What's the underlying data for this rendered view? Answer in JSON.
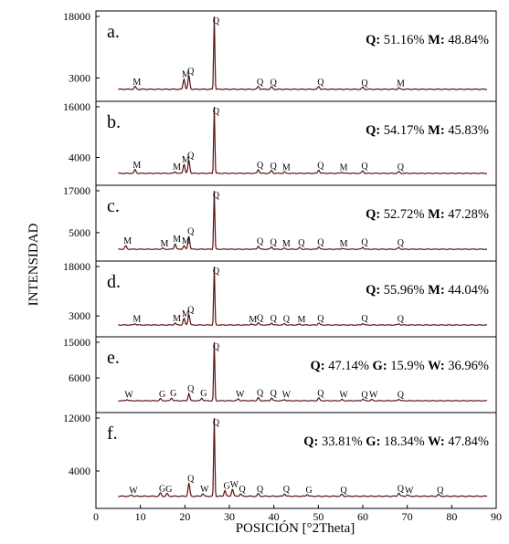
{
  "chart_data": {
    "type": "line",
    "xlabel": "POSICIÓN [°2Theta]",
    "ylabel": "INTENSIDAD",
    "xlim": [
      0,
      90
    ],
    "x_ticks": [
      0,
      10,
      20,
      30,
      40,
      50,
      60,
      70,
      80,
      90
    ],
    "grid": false,
    "line_color": "#5a1010",
    "panels": [
      {
        "letter": "a.",
        "ymax": 18000,
        "y_ticks": [
          3000,
          18000
        ],
        "composition": [
          {
            "label": "Q:",
            "value": "51.16%"
          },
          {
            "label": "M:",
            "value": "48.84%"
          }
        ],
        "peaks": [
          {
            "phase": "M",
            "x": 8.8,
            "y": 700
          },
          {
            "phase": "M",
            "x": 19.8,
            "y": 2600
          },
          {
            "phase": "Q",
            "x": 20.9,
            "y": 3300
          },
          {
            "phase": "Q",
            "x": 26.6,
            "y": 18000
          },
          {
            "phase": "Q",
            "x": 36.5,
            "y": 700
          },
          {
            "phase": "Q",
            "x": 39.5,
            "y": 600
          },
          {
            "phase": "Q",
            "x": 50.1,
            "y": 700
          },
          {
            "phase": "Q",
            "x": 60.0,
            "y": 500
          },
          {
            "phase": "M",
            "x": 68.1,
            "y": 300
          }
        ]
      },
      {
        "letter": "b.",
        "ymax": 16000,
        "y_ticks": [
          4000,
          16000
        ],
        "composition": [
          {
            "label": "Q:",
            "value": "54.17%"
          },
          {
            "label": "M:",
            "value": "45.83%"
          }
        ],
        "peaks": [
          {
            "phase": "M",
            "x": 8.8,
            "y": 900
          },
          {
            "phase": "M",
            "x": 17.8,
            "y": 400
          },
          {
            "phase": "M",
            "x": 19.8,
            "y": 2200
          },
          {
            "phase": "Q",
            "x": 20.9,
            "y": 3100
          },
          {
            "phase": "Q",
            "x": 26.6,
            "y": 16000
          },
          {
            "phase": "Q",
            "x": 36.5,
            "y": 900
          },
          {
            "phase": "Q",
            "x": 39.5,
            "y": 700
          },
          {
            "phase": "M",
            "x": 42.4,
            "y": 300
          },
          {
            "phase": "Q",
            "x": 50.1,
            "y": 800
          },
          {
            "phase": "M",
            "x": 55.3,
            "y": 300
          },
          {
            "phase": "Q",
            "x": 60.0,
            "y": 600
          },
          {
            "phase": "Q",
            "x": 68.1,
            "y": 400
          }
        ]
      },
      {
        "letter": "c.",
        "ymax": 17000,
        "y_ticks": [
          5000,
          17000
        ],
        "composition": [
          {
            "label": "Q:",
            "value": "52.72%"
          },
          {
            "label": "M:",
            "value": "47.28%"
          }
        ],
        "peaks": [
          {
            "phase": "M",
            "x": 6.7,
            "y": 1000
          },
          {
            "phase": "M",
            "x": 15.0,
            "y": 300
          },
          {
            "phase": "M",
            "x": 17.8,
            "y": 1600
          },
          {
            "phase": "M",
            "x": 19.8,
            "y": 1000
          },
          {
            "phase": "Q",
            "x": 20.9,
            "y": 3800
          },
          {
            "phase": "Q",
            "x": 26.6,
            "y": 17000
          },
          {
            "phase": "Q",
            "x": 36.5,
            "y": 900
          },
          {
            "phase": "Q",
            "x": 39.5,
            "y": 700
          },
          {
            "phase": "M",
            "x": 42.4,
            "y": 300
          },
          {
            "phase": "Q",
            "x": 45.8,
            "y": 500
          },
          {
            "phase": "Q",
            "x": 50.1,
            "y": 700
          },
          {
            "phase": "M",
            "x": 55.3,
            "y": 300
          },
          {
            "phase": "Q",
            "x": 60.0,
            "y": 600
          },
          {
            "phase": "Q",
            "x": 68.1,
            "y": 500
          }
        ]
      },
      {
        "letter": "d.",
        "ymax": 18000,
        "y_ticks": [
          3000,
          18000
        ],
        "composition": [
          {
            "label": "Q:",
            "value": "55.96%"
          },
          {
            "label": "M:",
            "value": "44.04%"
          }
        ],
        "peaks": [
          {
            "phase": "M",
            "x": 8.8,
            "y": 400
          },
          {
            "phase": "M",
            "x": 17.8,
            "y": 600
          },
          {
            "phase": "M",
            "x": 19.8,
            "y": 2000
          },
          {
            "phase": "Q",
            "x": 20.9,
            "y": 3200
          },
          {
            "phase": "Q",
            "x": 26.6,
            "y": 18000
          },
          {
            "phase": "M",
            "x": 34.9,
            "y": 300
          },
          {
            "phase": "Q",
            "x": 36.5,
            "y": 700
          },
          {
            "phase": "Q",
            "x": 39.5,
            "y": 600
          },
          {
            "phase": "Q",
            "x": 42.4,
            "y": 400
          },
          {
            "phase": "M",
            "x": 45.8,
            "y": 300
          },
          {
            "phase": "Q",
            "x": 50.1,
            "y": 600
          },
          {
            "phase": "Q",
            "x": 60.0,
            "y": 500
          },
          {
            "phase": "Q",
            "x": 68.1,
            "y": 400
          }
        ]
      },
      {
        "letter": "e.",
        "ymax": 15000,
        "y_ticks": [
          6000,
          15000
        ],
        "composition": [
          {
            "label": "Q:",
            "value": "47.14%"
          },
          {
            "label": "G:",
            "value": "15.9%"
          },
          {
            "label": "W:",
            "value": "36.96%"
          }
        ],
        "peaks": [
          {
            "phase": "W",
            "x": 7.0,
            "y": 300
          },
          {
            "phase": "G",
            "x": 14.5,
            "y": 500
          },
          {
            "phase": "G",
            "x": 17.0,
            "y": 700
          },
          {
            "phase": "Q",
            "x": 20.9,
            "y": 1800
          },
          {
            "phase": "G",
            "x": 23.8,
            "y": 700
          },
          {
            "phase": "Q",
            "x": 26.6,
            "y": 15000
          },
          {
            "phase": "W",
            "x": 32.0,
            "y": 500
          },
          {
            "phase": "Q",
            "x": 36.5,
            "y": 800
          },
          {
            "phase": "Q",
            "x": 39.5,
            "y": 700
          },
          {
            "phase": "W",
            "x": 42.4,
            "y": 300
          },
          {
            "phase": "Q",
            "x": 50.1,
            "y": 700
          },
          {
            "phase": "W",
            "x": 55.3,
            "y": 300
          },
          {
            "phase": "Q",
            "x": 60.0,
            "y": 400
          },
          {
            "phase": "W",
            "x": 62.0,
            "y": 300
          },
          {
            "phase": "Q",
            "x": 68.1,
            "y": 400
          }
        ]
      },
      {
        "letter": "f.",
        "ymax": 12000,
        "y_ticks": [
          4000,
          12000
        ],
        "composition": [
          {
            "label": "Q:",
            "value": "33.81%"
          },
          {
            "label": "G:",
            "value": "18.34%"
          },
          {
            "label": "W:",
            "value": "47.84%"
          }
        ],
        "peaks": [
          {
            "phase": "W",
            "x": 8.0,
            "y": 200
          },
          {
            "phase": "G",
            "x": 14.5,
            "y": 500
          },
          {
            "phase": "G",
            "x": 16.0,
            "y": 400
          },
          {
            "phase": "Q",
            "x": 20.9,
            "y": 2000
          },
          {
            "phase": "W",
            "x": 24.0,
            "y": 400
          },
          {
            "phase": "Q",
            "x": 26.6,
            "y": 12000
          },
          {
            "phase": "G",
            "x": 29.0,
            "y": 900
          },
          {
            "phase": "W",
            "x": 30.7,
            "y": 1100
          },
          {
            "phase": "Q",
            "x": 32.5,
            "y": 400
          },
          {
            "phase": "Q",
            "x": 36.5,
            "y": 400
          },
          {
            "phase": "Q",
            "x": 42.4,
            "y": 400
          },
          {
            "phase": "G",
            "x": 47.5,
            "y": 300
          },
          {
            "phase": "Q",
            "x": 55.3,
            "y": 300
          },
          {
            "phase": "Q",
            "x": 68.1,
            "y": 500
          },
          {
            "phase": "W",
            "x": 70.0,
            "y": 200
          },
          {
            "phase": "Q",
            "x": 77.0,
            "y": 300
          }
        ]
      }
    ]
  }
}
